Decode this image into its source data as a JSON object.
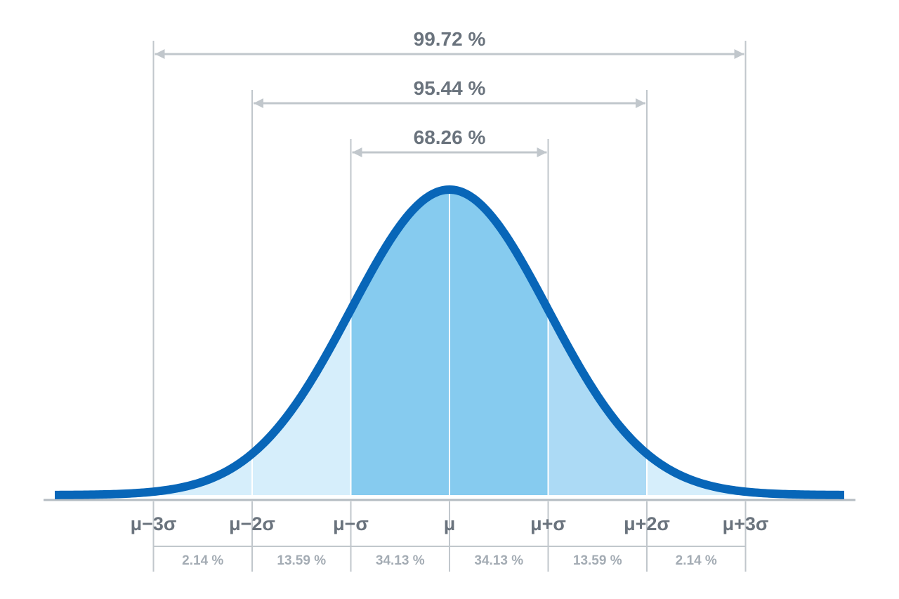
{
  "chart_data": {
    "type": "area",
    "distribution": "normal",
    "intervals": [
      {
        "label": "99.72 %",
        "from_sigma": -3,
        "to_sigma": 3
      },
      {
        "label": "95.44 %",
        "from_sigma": -2,
        "to_sigma": 2
      },
      {
        "label": "68.26 %",
        "from_sigma": -1,
        "to_sigma": 1
      }
    ],
    "tick_labels": [
      "μ−3σ",
      "μ−2σ",
      "μ−σ",
      "μ",
      "μ+σ",
      "μ+2σ",
      "μ+3σ"
    ],
    "segments": [
      {
        "label": "2.14 %",
        "from_sigma": -3,
        "to_sigma": -2
      },
      {
        "label": "13.59 %",
        "from_sigma": -2,
        "to_sigma": -1
      },
      {
        "label": "34.13 %",
        "from_sigma": -1,
        "to_sigma": 0
      },
      {
        "label": "34.13 %",
        "from_sigma": 0,
        "to_sigma": 1
      },
      {
        "label": "13.59 %",
        "from_sigma": 1,
        "to_sigma": 2
      },
      {
        "label": "2.14 %",
        "from_sigma": 2,
        "to_sigma": 3
      }
    ],
    "xlim_sigma": [
      -4,
      4
    ],
    "colors": {
      "curve": "#0866b8",
      "fill_1sigma": "#86cbef",
      "fill_2sigma": "#acdaf5",
      "fill_3sigma": "#d6eefb",
      "guide_lines": "#c1c7cc",
      "axis": "#b5bcc2",
      "text_primary": "#6a737d",
      "text_secondary": "#a4acb4"
    }
  }
}
